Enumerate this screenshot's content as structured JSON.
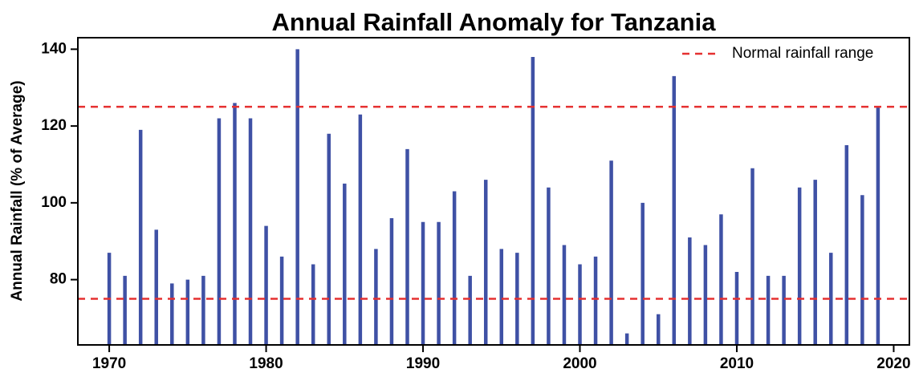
{
  "chart_data": {
    "type": "bar",
    "title": "Annual Rainfall Anomaly for Tanzania",
    "y_label": "Annual Rainfall (% of Average)",
    "x": [
      1970,
      1971,
      1972,
      1973,
      1974,
      1975,
      1976,
      1977,
      1978,
      1979,
      1980,
      1981,
      1982,
      1983,
      1984,
      1985,
      1986,
      1987,
      1988,
      1989,
      1990,
      1991,
      1992,
      1993,
      1994,
      1995,
      1996,
      1997,
      1998,
      1999,
      2000,
      2001,
      2002,
      2003,
      2004,
      2005,
      2006,
      2007,
      2008,
      2009,
      2010,
      2011,
      2012,
      2013,
      2014,
      2015,
      2016,
      2017,
      2018,
      2019
    ],
    "series": [
      {
        "color": "#3f51a5",
        "values": [
          87,
          81,
          119,
          93,
          79,
          80,
          81,
          122,
          126,
          122,
          94,
          86,
          140,
          84,
          118,
          105,
          123,
          88,
          96,
          114,
          95,
          95,
          103,
          81,
          106,
          88,
          87,
          138,
          104,
          89,
          84,
          86,
          111,
          66,
          100,
          71,
          133,
          91,
          89,
          97,
          82,
          109,
          81,
          81,
          104,
          106,
          87,
          115,
          102,
          125
        ]
      }
    ],
    "reference": {
      "name": "Normal rainfall range",
      "color": "#e53030",
      "values": [
        125,
        75
      ]
    },
    "xlim": [
      1968,
      2021
    ],
    "xticks": [
      1970,
      1980,
      1990,
      2000,
      2010,
      2020
    ],
    "ylim": [
      63,
      143
    ],
    "yticks": [
      80,
      100,
      120,
      140
    ],
    "legend": "top-right"
  }
}
